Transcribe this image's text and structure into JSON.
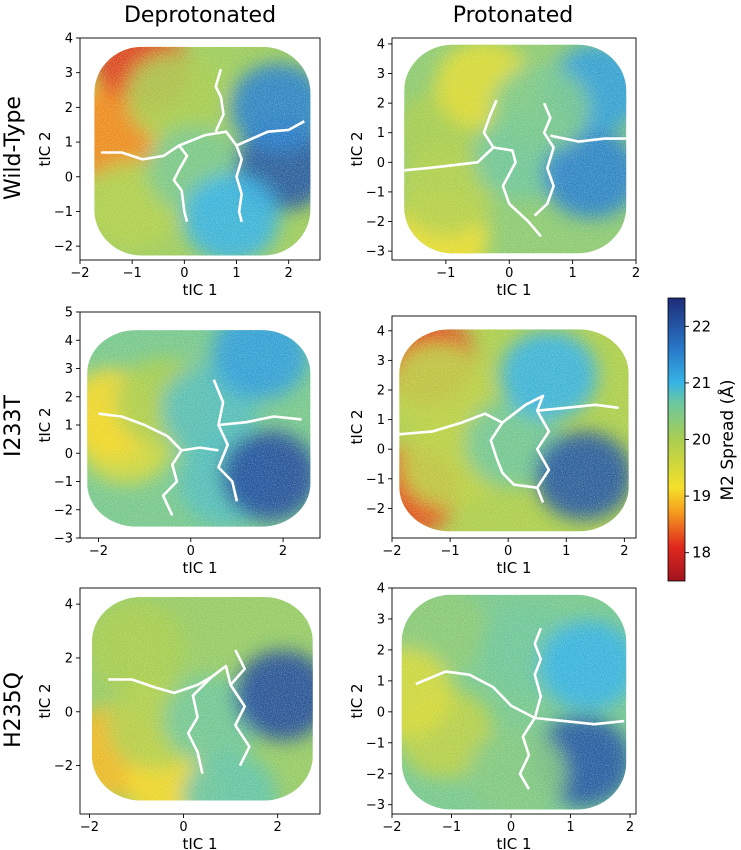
{
  "figure": {
    "column_titles": [
      "Deprotonated",
      "Protonated"
    ],
    "row_titles": [
      "Wild-Type",
      "I233T",
      "H235Q"
    ],
    "colorbar": {
      "label": "M2 Spread (Å)",
      "min": 17.5,
      "max": 22.5,
      "ticks": [
        18,
        19,
        20,
        21,
        22
      ],
      "colormap": "jet"
    }
  },
  "chart_data": [
    {
      "type": "heatmap",
      "panel": "Wild-Type / Deprotonated",
      "xlabel": "tIC 1",
      "ylabel": "tIC 2",
      "xlim": [
        -2.0,
        2.6
      ],
      "ylim": [
        -2.4,
        4.0
      ],
      "xticks": [
        -2,
        -1,
        0,
        1,
        2
      ],
      "yticks": [
        -2,
        -1,
        0,
        1,
        2,
        3,
        4
      ],
      "color_min": 17.5,
      "color_max": 22.5,
      "regions": [
        {
          "x": -1.25,
          "y": 1.6,
          "value": 19.3
        },
        {
          "x": -0.8,
          "y": 3.1,
          "value": 18.2
        },
        {
          "x": -1.5,
          "y": 1.2,
          "value": 18.6
        },
        {
          "x": -0.2,
          "y": 2.3,
          "value": 20.0
        },
        {
          "x": -1.0,
          "y": -0.8,
          "value": 19.9
        },
        {
          "x": 0.2,
          "y": 0.2,
          "value": 20.5
        },
        {
          "x": 1.9,
          "y": 0.3,
          "value": 22.0
        },
        {
          "x": 1.8,
          "y": 2.0,
          "value": 21.5
        },
        {
          "x": 0.9,
          "y": -1.2,
          "value": 21.0
        }
      ],
      "boundaries": [
        [
          [
            -1.6,
            0.7
          ],
          [
            -1.2,
            0.7
          ],
          [
            -0.8,
            0.5
          ],
          [
            -0.4,
            0.6
          ],
          [
            -0.1,
            0.9
          ],
          [
            0.05,
            0.6
          ],
          [
            -0.1,
            0.2
          ],
          [
            -0.2,
            -0.1
          ],
          [
            -0.05,
            -0.4
          ],
          [
            0.0,
            -1.0
          ],
          [
            0.05,
            -1.3
          ]
        ],
        [
          [
            -0.1,
            0.9
          ],
          [
            0.4,
            1.2
          ],
          [
            0.8,
            1.3
          ],
          [
            1.0,
            0.9
          ],
          [
            1.1,
            0.5
          ],
          [
            1.0,
            0.0
          ],
          [
            1.1,
            -0.5
          ],
          [
            1.05,
            -1.0
          ],
          [
            1.1,
            -1.3
          ]
        ],
        [
          [
            1.0,
            0.9
          ],
          [
            1.3,
            1.1
          ],
          [
            1.6,
            1.3
          ],
          [
            2.0,
            1.35
          ],
          [
            2.3,
            1.6
          ]
        ],
        [
          [
            0.6,
            1.3
          ],
          [
            0.75,
            1.8
          ],
          [
            0.7,
            2.3
          ],
          [
            0.6,
            2.6
          ],
          [
            0.7,
            3.1
          ]
        ]
      ]
    },
    {
      "type": "heatmap",
      "panel": "Wild-Type / Protonated",
      "xlabel": "tIC 1",
      "ylabel": "tIC 2",
      "xlim": [
        -1.85,
        2.0
      ],
      "ylim": [
        -3.3,
        4.2
      ],
      "xticks": [
        -1,
        0,
        1,
        2
      ],
      "yticks": [
        -3,
        -2,
        -1,
        0,
        1,
        2,
        3,
        4
      ],
      "color_min": 17.5,
      "color_max": 22.5,
      "regions": [
        {
          "x": -1.0,
          "y": 1.0,
          "value": 20.0
        },
        {
          "x": -0.4,
          "y": 2.6,
          "value": 19.4
        },
        {
          "x": -1.1,
          "y": -2.5,
          "value": 19.2
        },
        {
          "x": -1.0,
          "y": -1.0,
          "value": 19.9
        },
        {
          "x": 0.2,
          "y": 0.2,
          "value": 20.6
        },
        {
          "x": 1.3,
          "y": -0.4,
          "value": 21.5
        },
        {
          "x": 1.4,
          "y": 2.5,
          "value": 21.2
        },
        {
          "x": 0.5,
          "y": 1.8,
          "value": 20.5
        }
      ],
      "boundaries": [
        [
          [
            -1.8,
            -0.3
          ],
          [
            -1.3,
            -0.2
          ],
          [
            -0.9,
            -0.1
          ],
          [
            -0.5,
            0.0
          ],
          [
            -0.25,
            0.5
          ],
          [
            -0.4,
            1.0
          ],
          [
            -0.3,
            1.6
          ],
          [
            -0.2,
            2.1
          ]
        ],
        [
          [
            -0.25,
            0.5
          ],
          [
            0.05,
            0.4
          ],
          [
            0.1,
            0.0
          ],
          [
            -0.1,
            -0.8
          ],
          [
            0.0,
            -1.4
          ],
          [
            0.3,
            -2.0
          ],
          [
            0.5,
            -2.5
          ]
        ],
        [
          [
            0.55,
            2.0
          ],
          [
            0.65,
            1.5
          ],
          [
            0.55,
            1.0
          ],
          [
            0.7,
            0.5
          ],
          [
            0.6,
            -0.2
          ],
          [
            0.7,
            -0.8
          ],
          [
            0.6,
            -1.4
          ],
          [
            0.4,
            -1.8
          ]
        ],
        [
          [
            0.65,
            0.9
          ],
          [
            1.1,
            0.7
          ],
          [
            1.5,
            0.8
          ],
          [
            1.9,
            0.8
          ]
        ]
      ]
    },
    {
      "type": "heatmap",
      "panel": "I233T / Deprotonated",
      "xlabel": "tIC 1",
      "ylabel": "tIC 2",
      "xlim": [
        -2.4,
        2.8
      ],
      "ylim": [
        -3.0,
        5.0
      ],
      "xticks": [
        -2,
        0,
        2
      ],
      "yticks": [
        -3,
        -2,
        -1,
        0,
        1,
        2,
        3,
        4,
        5
      ],
      "color_min": 17.5,
      "color_max": 22.5,
      "regions": [
        {
          "x": -1.4,
          "y": 0.5,
          "value": 19.5
        },
        {
          "x": -1.7,
          "y": 1.4,
          "value": 19.1
        },
        {
          "x": -0.6,
          "y": 1.8,
          "value": 20.0
        },
        {
          "x": 0.4,
          "y": 1.5,
          "value": 20.8
        },
        {
          "x": 0.8,
          "y": -1.0,
          "value": 20.8
        },
        {
          "x": 1.7,
          "y": -0.8,
          "value": 22.1
        },
        {
          "x": 1.5,
          "y": 3.5,
          "value": 21.2
        }
      ],
      "boundaries": [
        [
          [
            -2.0,
            1.4
          ],
          [
            -1.5,
            1.3
          ],
          [
            -1.0,
            1.0
          ],
          [
            -0.5,
            0.6
          ],
          [
            -0.2,
            0.1
          ],
          [
            0.2,
            0.2
          ],
          [
            0.6,
            0.1
          ]
        ],
        [
          [
            -0.2,
            0.1
          ],
          [
            -0.4,
            -0.4
          ],
          [
            -0.3,
            -1.0
          ],
          [
            -0.6,
            -1.5
          ],
          [
            -0.4,
            -2.2
          ]
        ],
        [
          [
            0.5,
            2.6
          ],
          [
            0.7,
            1.8
          ],
          [
            0.6,
            1.0
          ],
          [
            0.8,
            0.3
          ],
          [
            0.6,
            -0.5
          ],
          [
            0.9,
            -1.0
          ],
          [
            1.0,
            -1.7
          ]
        ],
        [
          [
            0.6,
            1.0
          ],
          [
            1.2,
            1.1
          ],
          [
            1.8,
            1.3
          ],
          [
            2.4,
            1.2
          ]
        ]
      ]
    },
    {
      "type": "heatmap",
      "panel": "I233T / Protonated",
      "xlabel": "tIC 1",
      "ylabel": "tIC 2",
      "xlim": [
        -2.0,
        2.2
      ],
      "ylim": [
        -3.0,
        4.5
      ],
      "xticks": [
        -2,
        -1,
        0,
        1,
        2
      ],
      "yticks": [
        -2,
        -1,
        0,
        1,
        2,
        3,
        4
      ],
      "color_min": 17.5,
      "color_max": 22.5,
      "regions": [
        {
          "x": -1.4,
          "y": 3.0,
          "value": 18.2
        },
        {
          "x": -1.2,
          "y": 2.1,
          "value": 19.8
        },
        {
          "x": -1.7,
          "y": -1.4,
          "value": 18.3
        },
        {
          "x": -1.0,
          "y": -0.5,
          "value": 19.8
        },
        {
          "x": 0.1,
          "y": 0.2,
          "value": 20.6
        },
        {
          "x": 1.3,
          "y": -0.9,
          "value": 22.0
        },
        {
          "x": 0.7,
          "y": 2.5,
          "value": 21.0
        }
      ],
      "boundaries": [
        [
          [
            -1.9,
            0.5
          ],
          [
            -1.3,
            0.6
          ],
          [
            -0.8,
            0.9
          ],
          [
            -0.4,
            1.2
          ],
          [
            -0.1,
            0.9
          ]
        ],
        [
          [
            -0.1,
            0.9
          ],
          [
            -0.3,
            0.3
          ],
          [
            -0.2,
            -0.3
          ],
          [
            -0.1,
            -0.8
          ],
          [
            0.1,
            -1.2
          ],
          [
            0.5,
            -1.3
          ]
        ],
        [
          [
            -0.1,
            0.9
          ],
          [
            0.3,
            1.5
          ],
          [
            0.6,
            1.8
          ],
          [
            0.5,
            1.3
          ],
          [
            0.7,
            0.6
          ],
          [
            0.5,
            0.0
          ],
          [
            0.7,
            -0.7
          ],
          [
            0.5,
            -1.3
          ],
          [
            0.6,
            -1.8
          ]
        ],
        [
          [
            0.5,
            1.3
          ],
          [
            1.0,
            1.4
          ],
          [
            1.5,
            1.5
          ],
          [
            1.9,
            1.4
          ]
        ]
      ]
    },
    {
      "type": "heatmap",
      "panel": "H235Q / Deprotonated",
      "xlabel": "tIC 1",
      "ylabel": "tIC 2",
      "xlim": [
        -2.2,
        2.9
      ],
      "ylim": [
        -3.8,
        4.6
      ],
      "xticks": [
        -2,
        0,
        2
      ],
      "yticks": [
        -2,
        0,
        2,
        4
      ],
      "color_min": 17.5,
      "color_max": 22.5,
      "regions": [
        {
          "x": -1.0,
          "y": 2.4,
          "value": 20.0
        },
        {
          "x": -1.5,
          "y": -1.5,
          "value": 18.9
        },
        {
          "x": -0.2,
          "y": -2.6,
          "value": 19.1
        },
        {
          "x": -0.6,
          "y": -0.5,
          "value": 19.9
        },
        {
          "x": 0.6,
          "y": -0.3,
          "value": 20.6
        },
        {
          "x": 2.1,
          "y": 0.6,
          "value": 22.1
        },
        {
          "x": 1.0,
          "y": -3.2,
          "value": 20.7
        }
      ],
      "boundaries": [
        [
          [
            -1.6,
            1.2
          ],
          [
            -1.1,
            1.2
          ],
          [
            -0.6,
            0.9
          ],
          [
            -0.2,
            0.7
          ],
          [
            0.3,
            1.0
          ],
          [
            0.6,
            1.3
          ]
        ],
        [
          [
            0.6,
            1.3
          ],
          [
            0.2,
            0.6
          ],
          [
            0.3,
            -0.2
          ],
          [
            0.1,
            -0.8
          ],
          [
            0.3,
            -1.5
          ],
          [
            0.4,
            -2.3
          ]
        ],
        [
          [
            0.6,
            1.3
          ],
          [
            0.9,
            1.7
          ],
          [
            1.0,
            1.0
          ],
          [
            1.3,
            0.2
          ],
          [
            1.1,
            -0.5
          ],
          [
            1.4,
            -1.3
          ],
          [
            1.2,
            -2.0
          ]
        ],
        [
          [
            1.0,
            1.0
          ],
          [
            1.3,
            1.6
          ],
          [
            1.1,
            2.3
          ]
        ]
      ]
    },
    {
      "type": "heatmap",
      "panel": "H235Q / Protonated",
      "xlabel": "tIC 1",
      "ylabel": "tIC 2",
      "xlim": [
        -2.0,
        2.1
      ],
      "ylim": [
        -3.3,
        4.0
      ],
      "xticks": [
        -2,
        -1,
        0,
        1,
        2
      ],
      "yticks": [
        -3,
        -2,
        -1,
        0,
        1,
        2,
        3,
        4
      ],
      "color_min": 17.5,
      "color_max": 22.5,
      "regions": [
        {
          "x": -1.2,
          "y": 2.6,
          "value": 20.3
        },
        {
          "x": -1.1,
          "y": -0.7,
          "value": 19.8
        },
        {
          "x": -1.8,
          "y": 0.6,
          "value": 19.5
        },
        {
          "x": 0.3,
          "y": 2.0,
          "value": 20.6
        },
        {
          "x": 1.3,
          "y": 1.5,
          "value": 21.0
        },
        {
          "x": 1.2,
          "y": -1.6,
          "value": 22.0
        },
        {
          "x": 0.1,
          "y": -2.0,
          "value": 20.4
        }
      ],
      "boundaries": [
        [
          [
            -1.6,
            0.9
          ],
          [
            -1.1,
            1.3
          ],
          [
            -0.7,
            1.2
          ],
          [
            -0.3,
            0.8
          ],
          [
            0.0,
            0.2
          ],
          [
            0.4,
            -0.2
          ]
        ],
        [
          [
            0.4,
            -0.2
          ],
          [
            0.2,
            -0.8
          ],
          [
            0.3,
            -1.4
          ],
          [
            0.15,
            -2.0
          ],
          [
            0.3,
            -2.5
          ]
        ],
        [
          [
            0.4,
            -0.2
          ],
          [
            0.5,
            0.5
          ],
          [
            0.4,
            1.2
          ],
          [
            0.5,
            1.7
          ],
          [
            0.4,
            2.2
          ],
          [
            0.5,
            2.7
          ]
        ],
        [
          [
            0.4,
            -0.2
          ],
          [
            0.9,
            -0.3
          ],
          [
            1.4,
            -0.4
          ],
          [
            1.9,
            -0.3
          ]
        ]
      ]
    }
  ]
}
